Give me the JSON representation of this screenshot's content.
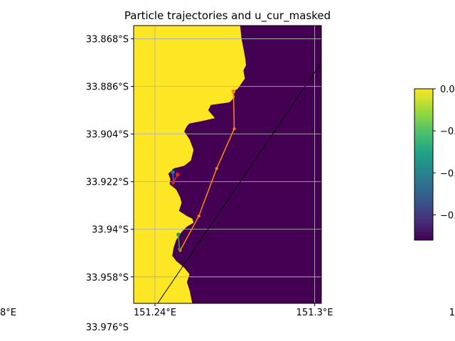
{
  "chart_data": {
    "type": "map",
    "title": "Particle trajectories and u_cur_masked",
    "xlim": [
      151.232,
      151.3025
    ],
    "ylim": [
      -33.968,
      -33.863
    ],
    "x_ticks": [
      {
        "value": 151.24,
        "label": "151.24°E"
      },
      {
        "value": 151.3,
        "label": "151.3°E"
      }
    ],
    "x_ticks_clipped": [
      {
        "value": 151.18,
        "label": "8°E"
      },
      {
        "value": 151.36,
        "label": "1"
      }
    ],
    "y_ticks": [
      {
        "value": -33.868,
        "label": "33.868°S"
      },
      {
        "value": -33.886,
        "label": "33.886°S"
      },
      {
        "value": -33.904,
        "label": "33.904°S"
      },
      {
        "value": -33.922,
        "label": "33.922°S"
      },
      {
        "value": -33.94,
        "label": "33.94°S"
      },
      {
        "value": -33.958,
        "label": "33.958°S"
      },
      {
        "value": -33.976,
        "label": "33.976°S"
      }
    ],
    "grid": true,
    "land_color": "#fde725",
    "ocean_color": "#440154",
    "coastline": [
      [
        151.272,
        -33.863
      ],
      [
        151.2725,
        -33.868
      ],
      [
        151.2735,
        -33.873
      ],
      [
        151.274,
        -33.876
      ],
      [
        151.2742,
        -33.878
      ],
      [
        151.2732,
        -33.88
      ],
      [
        151.2738,
        -33.883
      ],
      [
        151.271,
        -33.887
      ],
      [
        151.269,
        -33.888
      ],
      [
        151.27,
        -33.89
      ],
      [
        151.268,
        -33.892
      ],
      [
        151.261,
        -33.893
      ],
      [
        151.26,
        -33.895
      ],
      [
        151.2625,
        -33.898
      ],
      [
        151.258,
        -33.899
      ],
      [
        151.253,
        -33.9
      ],
      [
        151.252,
        -33.901
      ],
      [
        151.251,
        -33.903
      ],
      [
        151.253,
        -33.906
      ],
      [
        151.2545,
        -33.91
      ],
      [
        151.2535,
        -33.914
      ],
      [
        151.251,
        -33.916
      ],
      [
        151.247,
        -33.917
      ],
      [
        151.245,
        -33.919
      ],
      [
        151.2458,
        -33.921
      ],
      [
        151.2455,
        -33.923
      ],
      [
        151.248,
        -33.925
      ],
      [
        151.2495,
        -33.928
      ],
      [
        151.25,
        -33.93
      ],
      [
        151.249,
        -33.933
      ],
      [
        151.252,
        -33.935
      ],
      [
        151.254,
        -33.936
      ],
      [
        151.2545,
        -33.9375
      ],
      [
        151.252,
        -33.939
      ],
      [
        151.25,
        -33.941
      ],
      [
        151.248,
        -33.944
      ],
      [
        151.247,
        -33.947
      ],
      [
        151.2465,
        -33.95
      ],
      [
        151.248,
        -33.952
      ],
      [
        151.251,
        -33.9545
      ],
      [
        151.253,
        -33.957
      ],
      [
        151.252,
        -33.96
      ],
      [
        151.253,
        -33.963
      ],
      [
        151.254,
        -33.968
      ]
    ],
    "boundary_line": [
      [
        151.241,
        -33.968
      ],
      [
        151.3025,
        -33.877
      ]
    ],
    "series": [
      {
        "color": "#1f77b4",
        "points": [
          [
            151.2467,
            -33.9184
          ],
          [
            151.247,
            -33.9222
          ]
        ]
      },
      {
        "color": "#ff7f0e",
        "points": [
          [
            151.2695,
            -33.8879
          ],
          [
            151.2698,
            -33.902
          ],
          [
            151.2632,
            -33.917
          ],
          [
            151.2565,
            -33.935
          ],
          [
            151.2495,
            -33.948
          ]
        ]
      },
      {
        "color": "#2ca02c",
        "points": [
          [
            151.2488,
            -33.942
          ],
          [
            151.2492,
            -33.9475
          ]
        ]
      },
      {
        "color": "#d62728",
        "points": [
          [
            151.2485,
            -33.9193
          ],
          [
            151.2468,
            -33.9225
          ]
        ]
      }
    ],
    "colorbar": {
      "cmap": "viridis",
      "ticks": [
        {
          "value": 0.0,
          "label": "0.0"
        },
        {
          "value": -0.1,
          "label": "−0."
        },
        {
          "value": -0.2,
          "label": "−0."
        },
        {
          "value": -0.3,
          "label": "−0."
        }
      ],
      "range": [
        -0.36,
        0.0
      ]
    }
  }
}
